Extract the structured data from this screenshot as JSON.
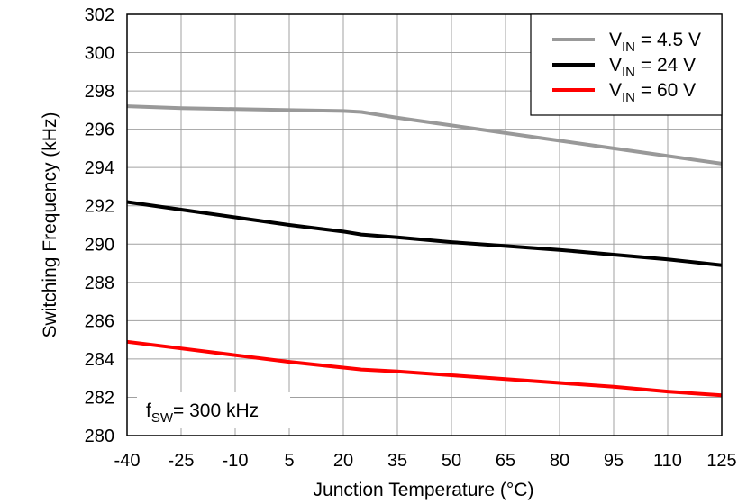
{
  "chart_data": {
    "type": "line",
    "title": "",
    "xlabel": "Junction Temperature (°C)",
    "ylabel": "Switching Frequency (kHz)",
    "xlim": [
      -40,
      125
    ],
    "ylim": [
      280,
      302
    ],
    "xticks": [
      "-40",
      "-25",
      "-10",
      "5",
      "20",
      "35",
      "50",
      "65",
      "80",
      "95",
      "110",
      "125"
    ],
    "yticks": [
      "280",
      "282",
      "284",
      "286",
      "288",
      "290",
      "292",
      "294",
      "296",
      "298",
      "300",
      "302"
    ],
    "grid": true,
    "legend_position": "top-right",
    "annotation": {
      "main": "f",
      "sub": "SW",
      "rest": "=  300 kHz"
    },
    "series": [
      {
        "name": "VIN = 4.5 V",
        "label_main": "V",
        "label_sub": "IN",
        "label_rest": " = 4.5 V",
        "color": "#999999",
        "x": [
          -40,
          -25,
          -10,
          5,
          20,
          25,
          35,
          50,
          65,
          80,
          95,
          110,
          125
        ],
        "y": [
          297.2,
          297.1,
          297.05,
          297.0,
          296.95,
          296.9,
          296.6,
          296.2,
          295.8,
          295.4,
          295.0,
          294.6,
          294.2
        ]
      },
      {
        "name": "VIN = 24 V",
        "label_main": "V",
        "label_sub": "IN",
        "label_rest": " = 24 V",
        "color": "#000000",
        "x": [
          -40,
          -25,
          -10,
          5,
          20,
          25,
          35,
          50,
          65,
          80,
          95,
          110,
          125
        ],
        "y": [
          292.2,
          291.8,
          291.4,
          291.0,
          290.65,
          290.5,
          290.35,
          290.1,
          289.9,
          289.7,
          289.45,
          289.2,
          288.9
        ]
      },
      {
        "name": "VIN = 60 V",
        "label_main": "V",
        "label_sub": "IN",
        "label_rest": " = 60 V",
        "color": "#ff0000",
        "x": [
          -40,
          -25,
          -10,
          5,
          20,
          25,
          35,
          50,
          65,
          80,
          95,
          110,
          125
        ],
        "y": [
          284.9,
          284.55,
          284.2,
          283.85,
          283.55,
          283.45,
          283.35,
          283.15,
          282.95,
          282.75,
          282.55,
          282.3,
          282.1
        ]
      }
    ]
  }
}
